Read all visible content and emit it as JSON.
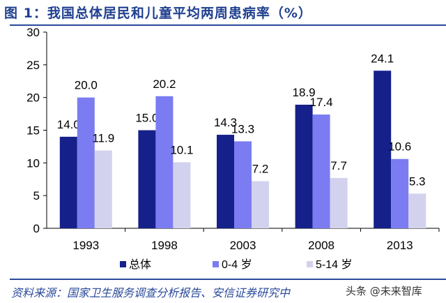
{
  "title": "图 1：我国总体居民和儿童平均两周患病率（%）",
  "source": "资料来源：国家卫生服务调查分析报告、安信证券研究中",
  "watermark": "头条 @未来智库",
  "chart_data": {
    "type": "bar",
    "title": "图 1：我国总体居民和儿童平均两周患病率（%）",
    "categories": [
      "1993",
      "1998",
      "2003",
      "2008",
      "2013"
    ],
    "series": [
      {
        "name": "总体",
        "color": "#15208a",
        "values": [
          14.0,
          15.0,
          14.3,
          18.9,
          24.1
        ]
      },
      {
        "name": "0-4 岁",
        "color": "#7b7cf2",
        "values": [
          20.0,
          20.2,
          13.3,
          17.4,
          10.6
        ]
      },
      {
        "name": "5-14 岁",
        "color": "#d2d2ee",
        "values": [
          11.9,
          10.1,
          7.2,
          7.7,
          5.3
        ]
      }
    ],
    "ylim": [
      0,
      30
    ],
    "yticks": [
      "0",
      "5",
      "10",
      "15",
      "20",
      "25",
      "30"
    ],
    "grid": false,
    "legend": "bottom",
    "xlabel": "",
    "ylabel": ""
  }
}
